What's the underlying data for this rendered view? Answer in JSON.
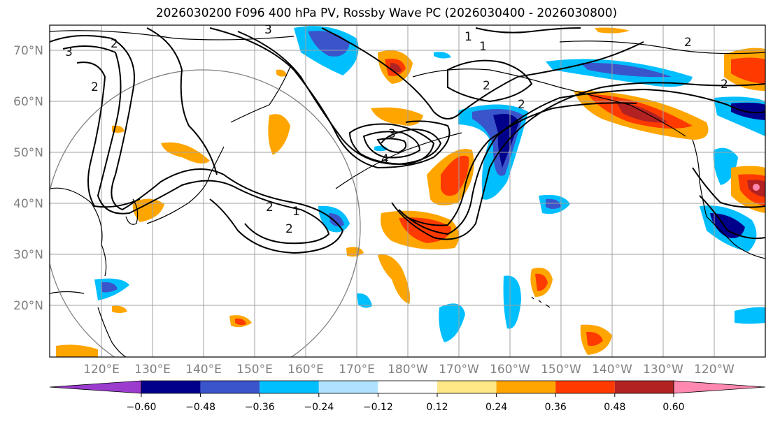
{
  "title": "2026030200 F096 400 hPa PV, Rossby Wave PC (2026030400 - 2026030800)",
  "lat_labels": [
    "70°N",
    "60°N",
    "50°N",
    "40°N",
    "30°N",
    "20°N"
  ],
  "lon_labels": [
    "120°E",
    "130°E",
    "140°E",
    "150°E",
    "160°E",
    "170°E",
    "180°W",
    "170°W",
    "160°W",
    "150°W",
    "140°W",
    "130°W",
    "120°W"
  ],
  "colorbar": {
    "ticks": [
      "−0.60",
      "−0.48",
      "−0.36",
      "−0.24",
      "−0.12",
      "0.12",
      "0.24",
      "0.36",
      "0.48",
      "0.60"
    ],
    "colors": [
      "#9b3ccf",
      "#00008b",
      "#3a55cc",
      "#00bfff",
      "#b0e2ff",
      "#ffffff",
      "#ffe885",
      "#ffa500",
      "#ff3a00",
      "#b22222",
      "#ff88b0"
    ]
  },
  "contour_labels": [
    "3",
    "2",
    "2",
    "1",
    "3",
    "1",
    "2",
    "2",
    "2",
    "3",
    "4",
    "2",
    "1",
    "2",
    "2"
  ],
  "colors": {
    "land_border": "#000000",
    "grid": "#a0a0a0",
    "circle": "#808080"
  }
}
